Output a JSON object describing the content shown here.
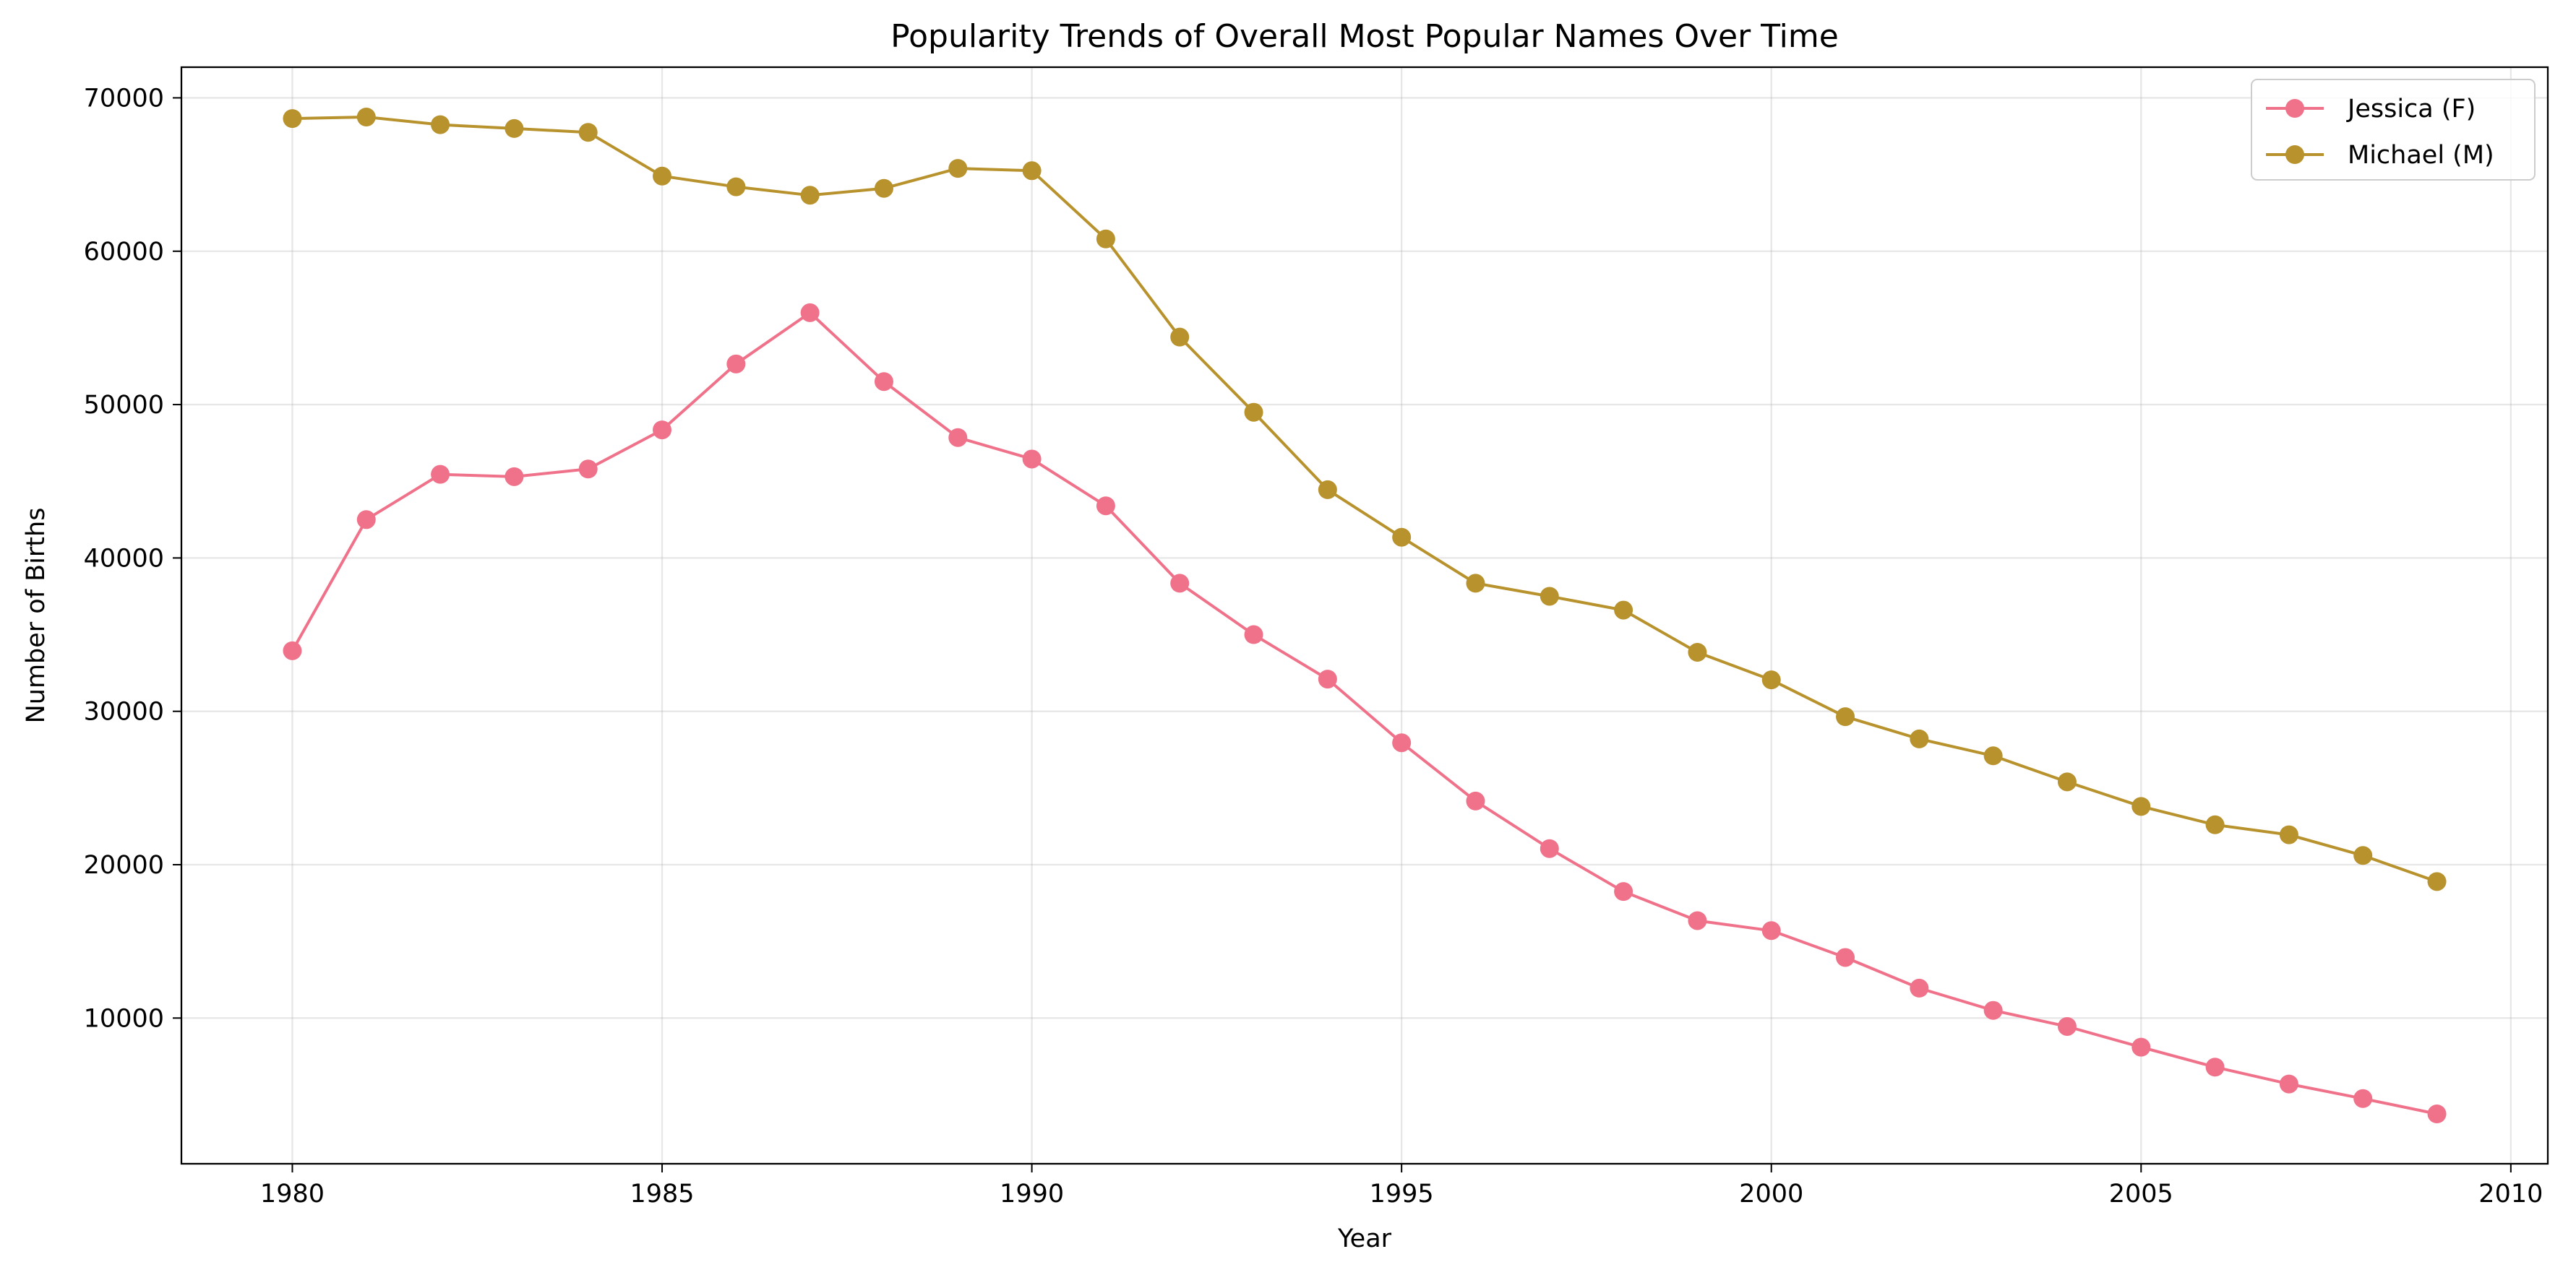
{
  "chart_data": {
    "type": "line",
    "title": "Popularity Trends of Overall Most Popular Names Over Time",
    "xlabel": "Year",
    "ylabel": "Number of Births",
    "xlim": [
      1978.5,
      2010.5
    ],
    "ylim": [
      500,
      72000
    ],
    "xticks": [
      1980,
      1985,
      1990,
      1995,
      2000,
      2005,
      2010
    ],
    "yticks": [
      10000,
      20000,
      30000,
      40000,
      50000,
      60000,
      70000
    ],
    "grid": true,
    "legend_position": "top-right",
    "x": [
      1980,
      1981,
      1982,
      1983,
      1984,
      1985,
      1986,
      1987,
      1988,
      1989,
      1990,
      1991,
      1992,
      1993,
      1994,
      1995,
      1996,
      1997,
      1998,
      1999,
      2000,
      2001,
      2002,
      2003,
      2004,
      2005,
      2006,
      2007,
      2008,
      2009
    ],
    "series": [
      {
        "name": "Jessica (F)",
        "color": "#f0728a",
        "values": [
          33950,
          42500,
          45450,
          45300,
          45800,
          48350,
          52650,
          55990,
          51500,
          47850,
          46450,
          43400,
          38350,
          35000,
          32100,
          27950,
          24150,
          21050,
          18250,
          16350,
          15700,
          13950,
          11950,
          10500,
          9450,
          8100,
          6800,
          5700,
          4750,
          3750
        ]
      },
      {
        "name": "Michael (M)",
        "color": "#b8922c",
        "values": [
          68650,
          68750,
          68250,
          68000,
          67750,
          64900,
          64200,
          63650,
          64100,
          65400,
          65250,
          60800,
          54400,
          49500,
          44450,
          41350,
          38350,
          37500,
          36600,
          33850,
          32050,
          29650,
          28200,
          27100,
          25400,
          23800,
          22600,
          21950,
          20600,
          18900
        ]
      }
    ]
  }
}
